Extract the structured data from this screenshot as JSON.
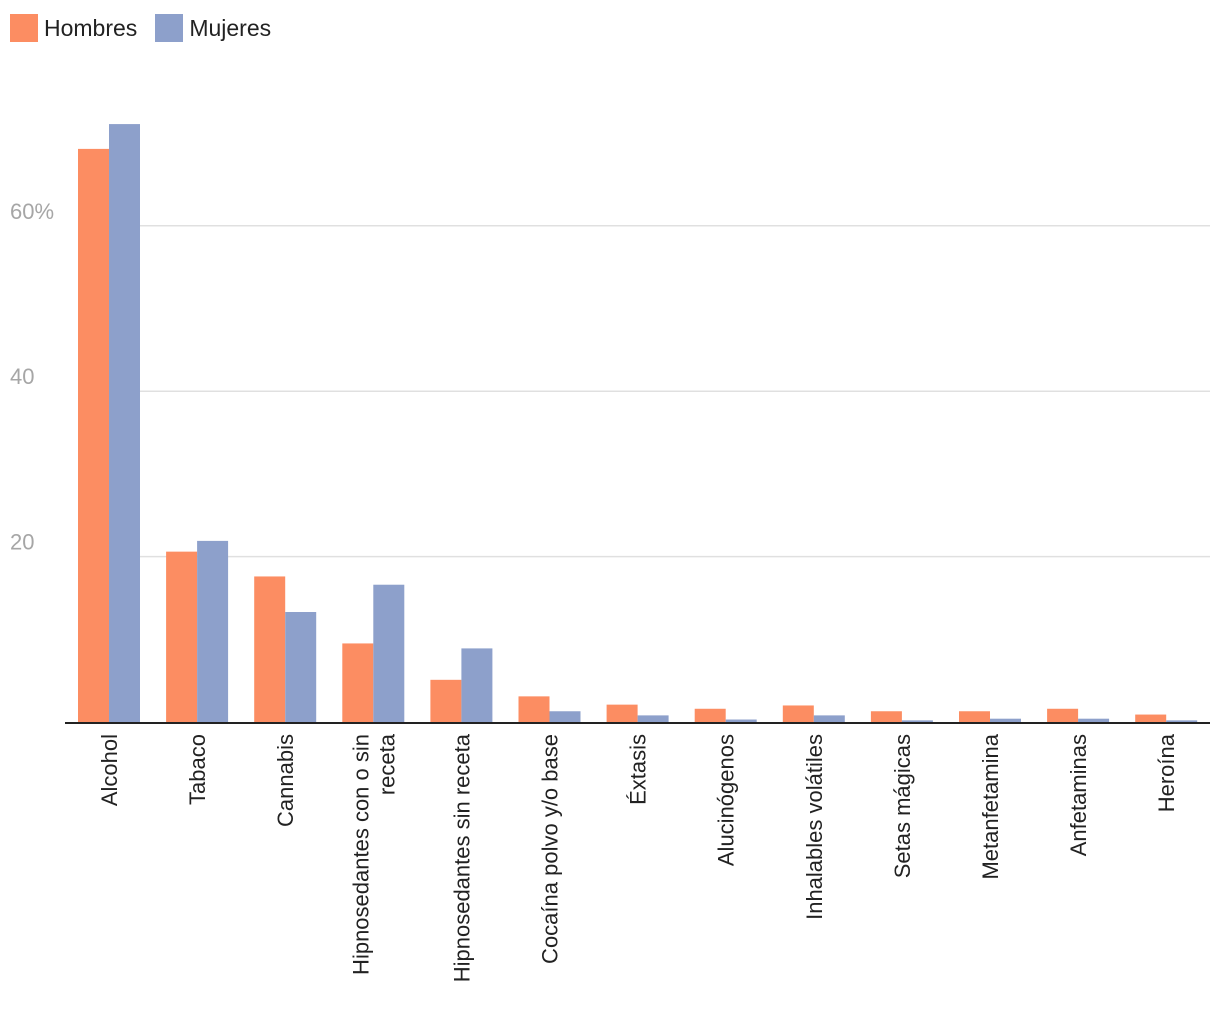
{
  "chart_data": {
    "type": "bar",
    "categories": [
      "Alcohol",
      "Tabaco",
      "Cannabis",
      "Hipnosedantes con o sin receta",
      "Hipnosedantes sin receta",
      "Cocaína polvo y/o base",
      "Éxtasis",
      "Alucinógenos",
      "Inhalables volátiles",
      "Setas mágicas",
      "Metanfetamina",
      "Anfetaminas",
      "Heroína"
    ],
    "category_lines": [
      [
        "Alcohol"
      ],
      [
        "Tabaco"
      ],
      [
        "Cannabis"
      ],
      [
        "Hipnosedantes con o sin",
        "receta"
      ],
      [
        "Hipnosedantes sin receta"
      ],
      [
        "Cocaína polvo y/o base"
      ],
      [
        "Éxtasis"
      ],
      [
        "Alucinógenos"
      ],
      [
        "Inhalables volátiles"
      ],
      [
        "Setas mágicas"
      ],
      [
        "Metanfetamina"
      ],
      [
        "Anfetaminas"
      ],
      [
        "Heroína"
      ]
    ],
    "series": [
      {
        "name": "Hombres",
        "color": "#fc8d62",
        "values": [
          69.3,
          20.6,
          17.6,
          9.5,
          5.1,
          3.1,
          2.1,
          1.6,
          2.0,
          1.3,
          1.3,
          1.6,
          0.9
        ]
      },
      {
        "name": "Mujeres",
        "color": "#8da0cb",
        "values": [
          72.3,
          21.9,
          13.3,
          16.6,
          8.9,
          1.3,
          0.8,
          0.3,
          0.8,
          0.2,
          0.4,
          0.4,
          0.2
        ]
      }
    ],
    "yticks": [
      {
        "value": 20,
        "label": "20"
      },
      {
        "value": 40,
        "label": "40"
      },
      {
        "value": 60,
        "label": "60%"
      }
    ],
    "ylim": [
      0,
      74
    ],
    "grid": true,
    "legend_position": "top-left",
    "title": "",
    "xlabel": "",
    "ylabel": ""
  }
}
